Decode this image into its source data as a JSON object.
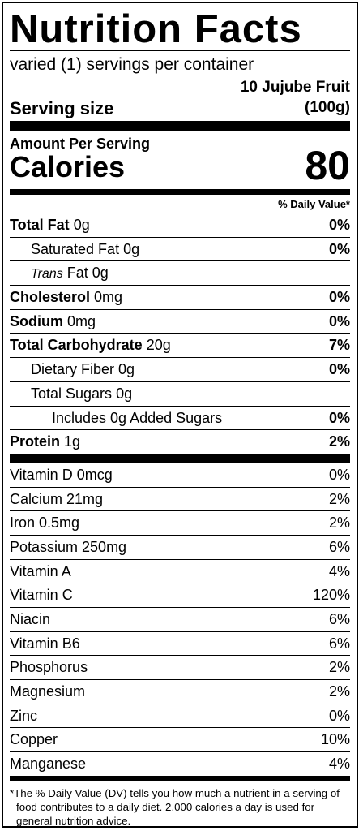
{
  "title": "Nutrition Facts",
  "servings_per_container": "varied (1) servings per container",
  "serving_size": {
    "label": "Serving size",
    "value_line1": "10 Jujube Fruit",
    "value_line2": "(100g)"
  },
  "amount_per_serving": "Amount Per Serving",
  "calories": {
    "label": "Calories",
    "value": "80"
  },
  "dv_header": "% Daily Value*",
  "nutrients": [
    {
      "name": "Total Fat",
      "amount": "0g",
      "dv": "0%"
    },
    {
      "name": "Saturated Fat",
      "amount": "0g",
      "dv": "0%"
    },
    {
      "name_italic": "Trans",
      "name": "Fat",
      "amount": "0g",
      "dv": ""
    },
    {
      "name": "Cholesterol",
      "amount": "0mg",
      "dv": "0%"
    },
    {
      "name": "Sodium",
      "amount": "0mg",
      "dv": "0%"
    },
    {
      "name": "Total Carbohydrate",
      "amount": "20g",
      "dv": "7%"
    },
    {
      "name": "Dietary Fiber",
      "amount": "0g",
      "dv": "0%"
    },
    {
      "name": "Total Sugars",
      "amount": "0g",
      "dv": ""
    },
    {
      "name": "Includes 0g Added Sugars",
      "amount": "",
      "dv": "0%"
    },
    {
      "name": "Protein",
      "amount": "1g",
      "dv": "2%"
    }
  ],
  "vitamins": [
    {
      "text": "Vitamin D 0mcg",
      "dv": "0%"
    },
    {
      "text": "Calcium 21mg",
      "dv": "2%"
    },
    {
      "text": "Iron 0.5mg",
      "dv": "2%"
    },
    {
      "text": "Potassium 250mg",
      "dv": "6%"
    },
    {
      "text": "Vitamin A",
      "dv": "4%"
    },
    {
      "text": "Vitamin C",
      "dv": "120%"
    },
    {
      "text": "Niacin",
      "dv": "6%"
    },
    {
      "text": "Vitamin B6",
      "dv": "6%"
    },
    {
      "text": "Phosphorus",
      "dv": "2%"
    },
    {
      "text": "Magnesium",
      "dv": "2%"
    },
    {
      "text": "Zinc",
      "dv": "0%"
    },
    {
      "text": "Copper",
      "dv": "10%"
    },
    {
      "text": "Manganese",
      "dv": "4%"
    }
  ],
  "footnote": "*The % Daily Value (DV) tells you how much a nutrient in a serving of food contributes to a daily diet. 2,000 calories a day is used for general nutrition advice."
}
